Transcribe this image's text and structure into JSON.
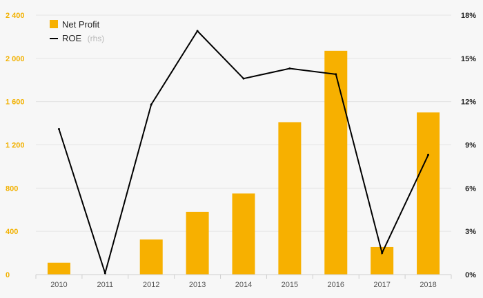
{
  "chart_data": {
    "type": "bar",
    "categories": [
      "2010",
      "2011",
      "2012",
      "2013",
      "2014",
      "2015",
      "2016",
      "2017",
      "2018"
    ],
    "series": [
      {
        "name": "Net Profit",
        "type": "bar",
        "axis": "left",
        "color": "#f7b000",
        "values": [
          110,
          0,
          325,
          580,
          750,
          1410,
          2070,
          255,
          1500
        ]
      },
      {
        "name": "ROE",
        "type": "line",
        "axis": "right",
        "color": "#000000",
        "values": [
          10.1,
          0.1,
          11.8,
          16.9,
          13.6,
          14.3,
          13.9,
          1.5,
          8.3
        ]
      }
    ],
    "ylim_left": [
      0,
      2400
    ],
    "yticks_left": [
      "0",
      "400",
      "800",
      "1 200",
      "1 600",
      "2 000",
      "2 400"
    ],
    "ylim_right": [
      0,
      18
    ],
    "yticks_right": [
      "0%",
      "3%",
      "6%",
      "9%",
      "12%",
      "15%",
      "18%"
    ],
    "legend": [
      {
        "label": "Net Profit",
        "suffix": ""
      },
      {
        "label": "ROE",
        "suffix": "(rhs)"
      }
    ],
    "legend_position": "top-left",
    "grid": true
  }
}
